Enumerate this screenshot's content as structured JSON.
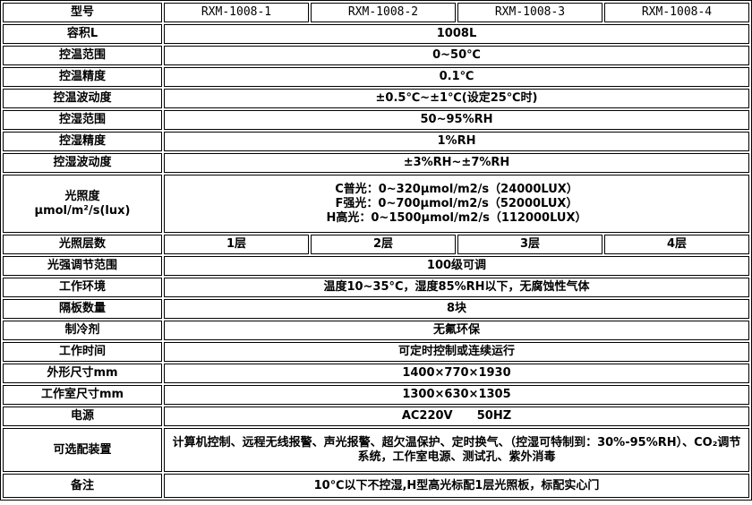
{
  "rows": {
    "model": {
      "label": "型号",
      "values": [
        "RXM-1008-1",
        "RXM-1008-2",
        "RXM-1008-3",
        "RXM-1008-4"
      ]
    },
    "volume": {
      "label": "容积L",
      "value": "1008L"
    },
    "temp_range": {
      "label": "控温范围",
      "value": "0~50℃"
    },
    "temp_precision": {
      "label": "控温精度",
      "value": "0.1℃"
    },
    "temp_fluct": {
      "label": "控温波动度",
      "value": "±0.5℃~±1℃(设定25℃时)"
    },
    "hum_range": {
      "label": "控湿范围",
      "value": "50~95%RH"
    },
    "hum_precision": {
      "label": "控湿精度",
      "value": "1%RH"
    },
    "hum_fluct": {
      "label": "控湿波动度",
      "value": "±3%RH~±7%RH"
    },
    "illuminance": {
      "label_line1": "光照度",
      "label_line2": "μmol/m²/s(lux)",
      "values": [
        "C普光：0~320μmol/m2/s（24000LUX）",
        "F强光：0~700μmol/m2/s（52000LUX）",
        "H高光：0~1500μmol/m2/s（112000LUX）"
      ]
    },
    "light_layers": {
      "label": "光照层数",
      "values": [
        "1层",
        "2层",
        "3层",
        "4层"
      ]
    },
    "light_adjust": {
      "label": "光强调节范围",
      "value": "100级可调"
    },
    "environment": {
      "label": "工作环境",
      "value": "温度10~35°C，湿度85%RH以下，无腐蚀性气体"
    },
    "shelves": {
      "label": "隔板数量",
      "value": "8块"
    },
    "refrigerant": {
      "label": "制冷剂",
      "value": "无氟环保"
    },
    "work_time": {
      "label": "工作时间",
      "value": "可定时控制或连续运行"
    },
    "outer_size": {
      "label": "外形尺寸mm",
      "value": "1400×770×1930"
    },
    "chamber_size": {
      "label": "工作室尺寸mm",
      "value": "1300×630×1305"
    },
    "power": {
      "label": "电源",
      "value": "AC220V      50HZ"
    },
    "options": {
      "label": "可选配装置",
      "value": "计算机控制、远程无线报警、声光报警、超欠温保护、定时换气、（控湿可特制到：30%-95%RH）、CO₂调节系统，工作室电源、测试孔、紫外消毒"
    },
    "remarks": {
      "label": "备注",
      "value": "10℃以下不控湿,H型高光标配1层光照板，标配实心门"
    }
  }
}
